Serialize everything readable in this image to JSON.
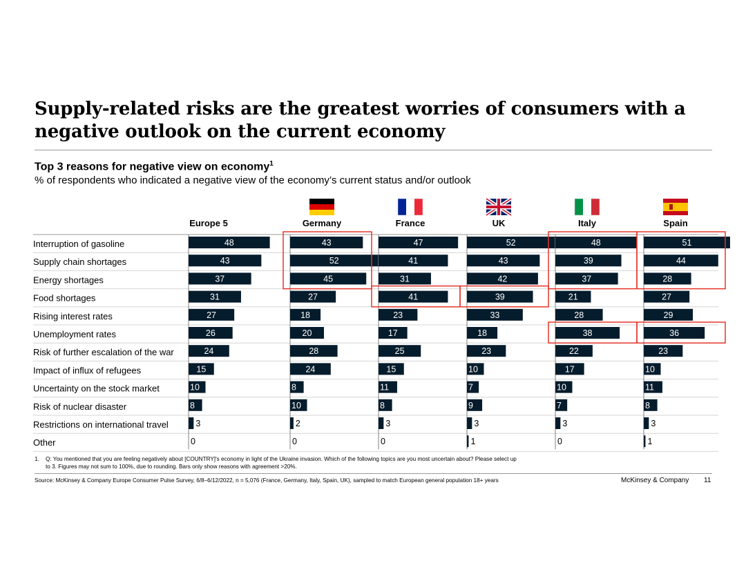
{
  "title": "Supply-related risks are the greatest worries of consumers with a negative outlook on the current economy",
  "subtitle": "Top 3 reasons for negative view on economy",
  "subtitle_sup": "1",
  "description": "% of respondents who indicated a negative view of the economy’s current status and/or outlook",
  "chart_data": {
    "type": "bar",
    "orientation": "horizontal",
    "categories": [
      "Interruption of gasoline",
      "Supply chain shortages",
      "Energy shortages",
      "Food shortages",
      "Rising interest rates",
      "Unemployment rates",
      "Risk of further escalation of the war",
      "Impact of influx of refugees",
      "Uncertainty on the stock market",
      "Risk of nuclear disaster",
      "Restrictions on international travel",
      "Other"
    ],
    "series": [
      {
        "name": "Europe 5",
        "flag": "none",
        "values": [
          48,
          43,
          37,
          31,
          27,
          26,
          24,
          15,
          10,
          8,
          3,
          0
        ],
        "highlight": []
      },
      {
        "name": "Germany",
        "flag": "germany-flag",
        "values": [
          43,
          52,
          45,
          27,
          18,
          20,
          28,
          24,
          8,
          10,
          2,
          0
        ],
        "highlight": [
          [
            0,
            2
          ]
        ]
      },
      {
        "name": "France",
        "flag": "france-flag",
        "values": [
          47,
          41,
          31,
          41,
          23,
          17,
          25,
          15,
          11,
          8,
          3,
          0
        ],
        "highlight": [
          [
            3,
            3
          ]
        ]
      },
      {
        "name": "UK",
        "flag": "uk-flag",
        "values": [
          52,
          43,
          42,
          39,
          33,
          18,
          23,
          10,
          7,
          9,
          3,
          1
        ],
        "highlight": [
          [
            3,
            3
          ]
        ]
      },
      {
        "name": "Italy",
        "flag": "italy-flag",
        "values": [
          48,
          39,
          37,
          21,
          28,
          38,
          22,
          17,
          10,
          7,
          3,
          0
        ],
        "highlight": [
          [
            0,
            2
          ],
          [
            5,
            5
          ]
        ]
      },
      {
        "name": "Spain",
        "flag": "spain-flag",
        "values": [
          51,
          44,
          28,
          27,
          29,
          36,
          23,
          10,
          11,
          8,
          3,
          1
        ],
        "highlight": [
          [
            0,
            2
          ],
          [
            5,
            5
          ]
        ]
      }
    ],
    "xlim": [
      0,
      60
    ]
  },
  "colors": {
    "bar": "#051c2c",
    "highlight": "#e5352b",
    "flag_de": [
      "#000000",
      "#dd0000",
      "#ffce00"
    ],
    "flag_fr": [
      "#002395",
      "#ffffff",
      "#ed2939"
    ],
    "flag_it": [
      "#009246",
      "#ffffff",
      "#ce2b37"
    ],
    "flag_es": [
      "#c60b1e",
      "#ffc400"
    ],
    "flag_uk": [
      "#012169",
      "#ffffff",
      "#c8102e"
    ]
  },
  "footnote": {
    "number": "1.",
    "text": "Q: You mentioned that you are feeling negatively about [COUNTRY]'s economy in light of the Ukraine invasion. Which of the following topics are you most uncertain about? Please select up to 3. Figures may not sum to 100%, due to rounding. Bars only show reasons with agreement >20%."
  },
  "source": "Source: McKinsey & Company Europe Consumer Pulse Survey, 6/8–6/12/2022, n = 5,076 (France, Germany, Italy, Spain, UK), sampled to match European general population 18+ years",
  "brand": "McKinsey & Company",
  "page_number": "11"
}
